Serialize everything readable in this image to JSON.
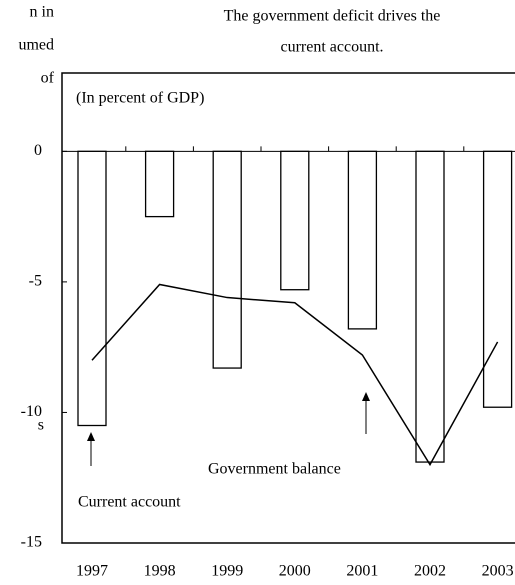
{
  "fragments": [
    "n in",
    "umed",
    "of",
    "s"
  ],
  "chart_data": {
    "type": "bar",
    "title": [
      "The government deficit drives the",
      "current account."
    ],
    "annotations": [
      "(In percent of GDP)"
    ],
    "categories": [
      "1997",
      "1998",
      "1999",
      "2000",
      "2001",
      "2002",
      "2003"
    ],
    "series": [
      {
        "name": "Current account",
        "type": "bar",
        "color": "#ffffff",
        "values": [
          -10.5,
          -2.5,
          -8.3,
          -5.3,
          -6.8,
          -11.9,
          -9.8
        ]
      },
      {
        "name": "Government balance",
        "type": "line",
        "color": "#000000",
        "values": [
          -8.0,
          -5.1,
          -5.6,
          -5.8,
          -7.8,
          -12.0,
          -7.3
        ]
      }
    ],
    "ylim": [
      -15,
      3
    ],
    "yticks": [
      -15,
      -10,
      -5,
      0
    ]
  }
}
